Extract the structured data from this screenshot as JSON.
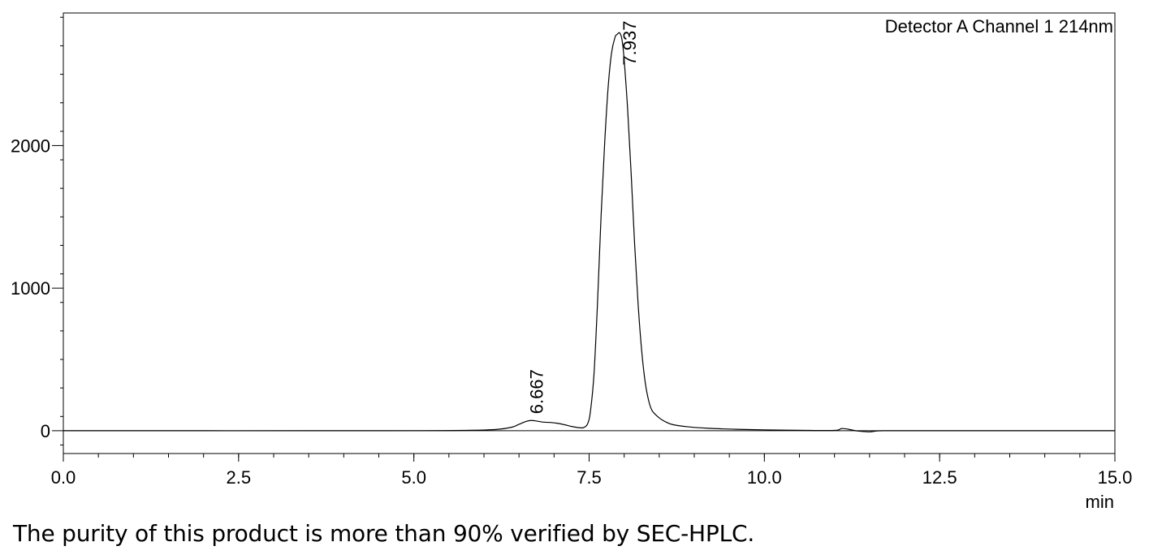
{
  "chart_data": {
    "type": "line",
    "title": "",
    "detector_label": "Detector A Channel 1 214nm",
    "xlabel": "min",
    "ylabel": "",
    "xlim": [
      0,
      15
    ],
    "ylim": [
      -160,
      2930
    ],
    "x_ticks": [
      0.0,
      2.5,
      5.0,
      7.5,
      10.0,
      12.5,
      15.0
    ],
    "x_tick_labels": [
      "0.0",
      "2.5",
      "5.0",
      "7.5",
      "10.0",
      "12.5",
      "15.0"
    ],
    "y_ticks": [
      0,
      1000,
      2000
    ],
    "y_tick_labels": [
      "0",
      "1000",
      "2000"
    ],
    "grid": false,
    "series": [
      {
        "x": [
          0,
          4.6,
          5.8,
          6.2,
          6.4,
          6.5,
          6.6,
          6.667,
          6.75,
          6.85,
          6.95,
          7.05,
          7.15,
          7.25,
          7.35,
          7.42,
          7.48,
          7.52,
          7.57,
          7.62,
          7.67,
          7.72,
          7.77,
          7.82,
          7.87,
          7.9,
          7.937,
          7.97,
          8.0,
          8.05,
          8.1,
          8.15,
          8.2,
          8.25,
          8.3,
          8.35,
          8.4,
          8.5,
          8.6,
          8.7,
          8.9,
          9.2,
          9.6,
          10.0,
          10.5,
          11.0,
          11.1,
          11.2,
          11.3,
          11.4,
          11.5,
          11.6,
          11.7,
          12.0,
          13.0,
          15.0
        ],
        "y": [
          0,
          0,
          3,
          10,
          25,
          45,
          65,
          72,
          68,
          60,
          58,
          52,
          42,
          30,
          22,
          22,
          50,
          140,
          400,
          900,
          1500,
          2000,
          2400,
          2650,
          2760,
          2780,
          2790,
          2740,
          2600,
          2250,
          1800,
          1300,
          880,
          560,
          340,
          210,
          140,
          90,
          60,
          42,
          28,
          17,
          10,
          6,
          3,
          2,
          15,
          10,
          0,
          -5,
          -8,
          -2,
          0,
          0,
          0,
          0
        ]
      }
    ],
    "peak_labels": [
      {
        "text": "6.667",
        "x": 6.667,
        "y": 72
      },
      {
        "text": "7.937",
        "x": 7.937,
        "y": 2790
      }
    ]
  },
  "caption": "The purity of this product is more than 90% verified by SEC-HPLC."
}
